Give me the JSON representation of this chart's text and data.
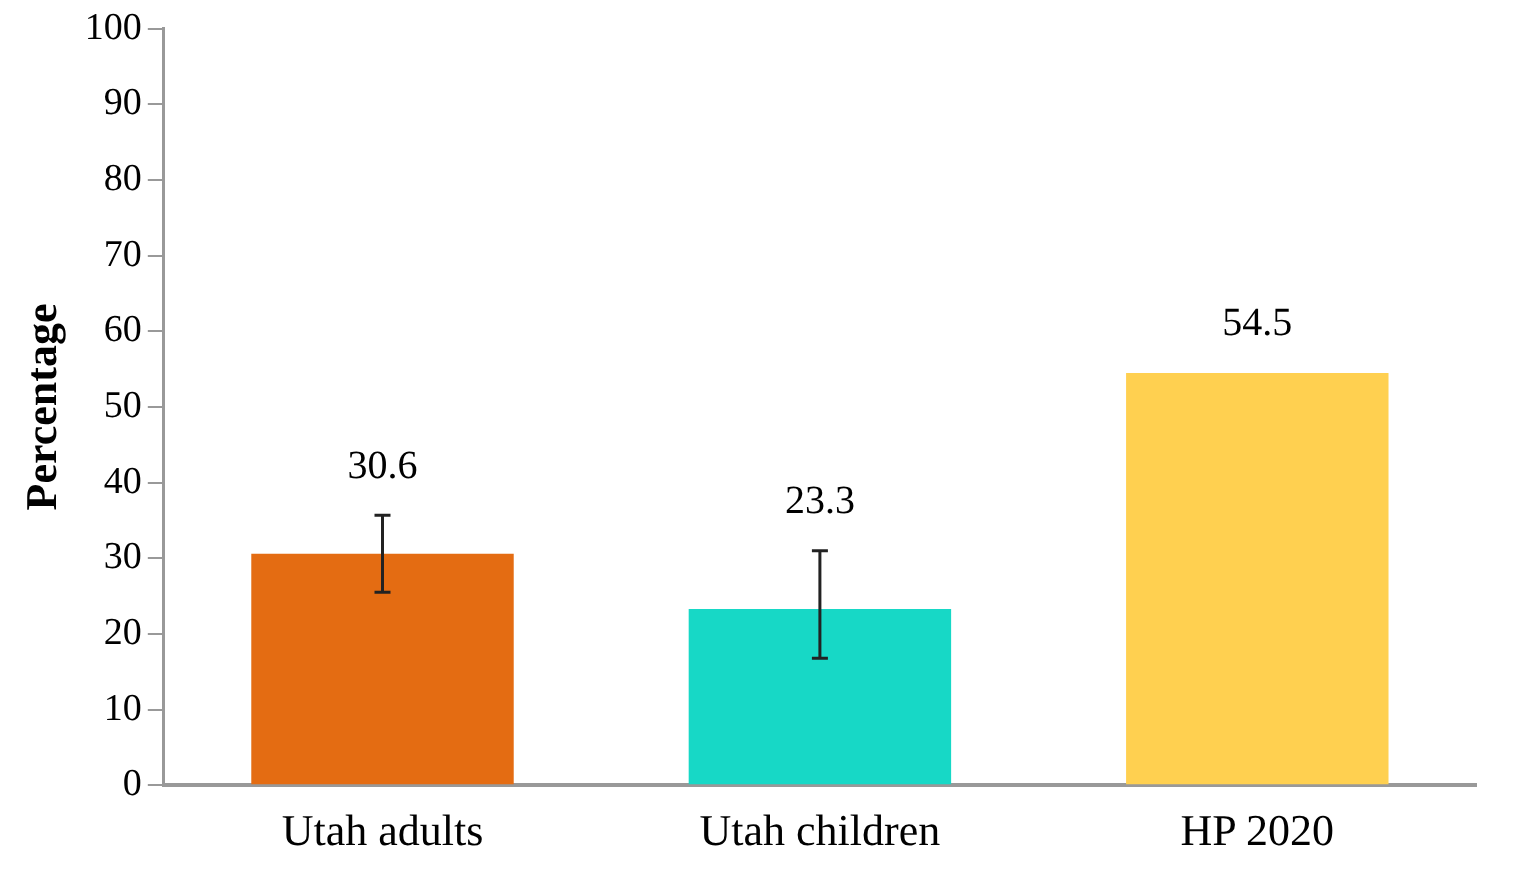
{
  "chart_data": {
    "type": "bar",
    "ylabel": "Percentage",
    "categories": [
      "Utah adults",
      "Utah children",
      "HP 2020"
    ],
    "values": [
      30.6,
      23.3,
      54.5
    ],
    "colors": [
      "#e46c12",
      "#17d8c6",
      "#ffd050"
    ],
    "errors": [
      [
        25.5,
        35.7
      ],
      [
        16.8,
        31.0
      ],
      null
    ],
    "data_labels": true,
    "ylim": [
      0,
      100
    ],
    "yticks": [
      0,
      10,
      20,
      30,
      40,
      50,
      60,
      70,
      80,
      90,
      100
    ],
    "grid": false,
    "legend": false
  }
}
